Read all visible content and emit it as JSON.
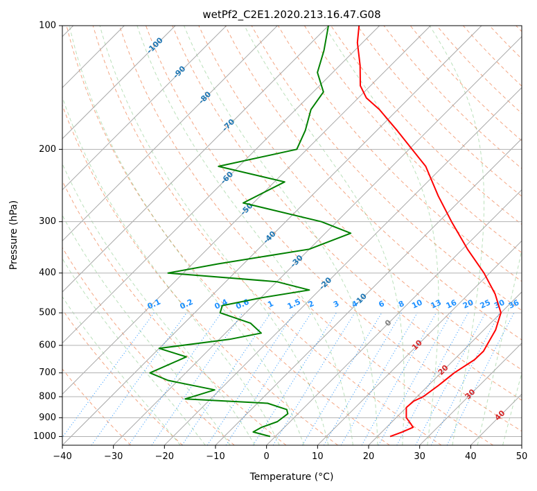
{
  "chart_data": {
    "type": "line",
    "title": "wetPf2_C2E1.2020.213.16.47.G08",
    "xlabel": "Temperature (°C)",
    "ylabel": "Pressure (hPa)",
    "xlim": [
      -40,
      50
    ],
    "ylim": [
      1050,
      100
    ],
    "y_scale": "log",
    "grid": true,
    "x_ticks": [
      -40,
      -30,
      -20,
      -10,
      0,
      10,
      20,
      30,
      40,
      50
    ],
    "y_ticks": [
      100,
      200,
      300,
      400,
      500,
      600,
      700,
      800,
      900,
      1000
    ],
    "skew_description": "skewed isotherms (Skew-T log-P diagram)",
    "series": [
      {
        "color": "#ff0000",
        "points": [
          {
            "p": 1000,
            "t": 22.5
          },
          {
            "p": 975,
            "t": 24.0
          },
          {
            "p": 950,
            "t": 25.2
          },
          {
            "p": 930,
            "t": 24.0
          },
          {
            "p": 900,
            "t": 22.0
          },
          {
            "p": 850,
            "t": 20.0
          },
          {
            "p": 820,
            "t": 20.2
          },
          {
            "p": 800,
            "t": 21.2
          },
          {
            "p": 750,
            "t": 22.0
          },
          {
            "p": 700,
            "t": 22.6
          },
          {
            "p": 650,
            "t": 24.0
          },
          {
            "p": 620,
            "t": 24.1
          },
          {
            "p": 600,
            "t": 23.6
          },
          {
            "p": 550,
            "t": 22.3
          },
          {
            "p": 500,
            "t": 20.0
          },
          {
            "p": 450,
            "t": 15.2
          },
          {
            "p": 400,
            "t": 8.9
          },
          {
            "p": 350,
            "t": 1.0
          },
          {
            "p": 300,
            "t": -7.5
          },
          {
            "p": 260,
            "t": -15.1
          },
          {
            "p": 220,
            "t": -23.4
          },
          {
            "p": 200,
            "t": -29.4
          },
          {
            "p": 180,
            "t": -36.0
          },
          {
            "p": 160,
            "t": -43.6
          },
          {
            "p": 150,
            "t": -48.4
          },
          {
            "p": 140,
            "t": -52.0
          },
          {
            "p": 125,
            "t": -56.0
          },
          {
            "p": 110,
            "t": -61.0
          },
          {
            "p": 100,
            "t": -64.0
          }
        ]
      },
      {
        "color": "#008000",
        "points": [
          {
            "p": 1000,
            "t": -1.0
          },
          {
            "p": 975,
            "t": -5.2
          },
          {
            "p": 950,
            "t": -4.5
          },
          {
            "p": 920,
            "t": -2.5
          },
          {
            "p": 880,
            "t": -2.0
          },
          {
            "p": 860,
            "t": -3.0
          },
          {
            "p": 830,
            "t": -8.0
          },
          {
            "p": 810,
            "t": -25.0
          },
          {
            "p": 790,
            "t": -23.0
          },
          {
            "p": 770,
            "t": -21.0
          },
          {
            "p": 730,
            "t": -32.0
          },
          {
            "p": 700,
            "t": -37.0
          },
          {
            "p": 640,
            "t": -33.0
          },
          {
            "p": 610,
            "t": -40.0
          },
          {
            "p": 580,
            "t": -28.0
          },
          {
            "p": 560,
            "t": -23.0
          },
          {
            "p": 530,
            "t": -27.0
          },
          {
            "p": 500,
            "t": -35.0
          },
          {
            "p": 480,
            "t": -36.0
          },
          {
            "p": 460,
            "t": -30.0
          },
          {
            "p": 440,
            "t": -22.0
          },
          {
            "p": 420,
            "t": -30.0
          },
          {
            "p": 400,
            "t": -53.0
          },
          {
            "p": 380,
            "t": -45.0
          },
          {
            "p": 350,
            "t": -30.0
          },
          {
            "p": 320,
            "t": -25.0
          },
          {
            "p": 300,
            "t": -33.0
          },
          {
            "p": 270,
            "t": -52.0
          },
          {
            "p": 240,
            "t": -48.0
          },
          {
            "p": 220,
            "t": -64.0
          },
          {
            "p": 200,
            "t": -52.0
          },
          {
            "p": 180,
            "t": -54.0
          },
          {
            "p": 160,
            "t": -57.0
          },
          {
            "p": 145,
            "t": -58.0
          },
          {
            "p": 130,
            "t": -63.0
          },
          {
            "p": 115,
            "t": -66.0
          },
          {
            "p": 100,
            "t": -70.0
          }
        ]
      }
    ],
    "isotherm_labels": {
      "values": [
        -100,
        -90,
        -80,
        -70,
        -60,
        -50,
        -40,
        -30,
        -20,
        -10,
        0,
        10,
        20,
        30,
        40
      ],
      "text": [
        "-100",
        "-90",
        "-80",
        "-70",
        "-60",
        "-50",
        "-40",
        "-30",
        "-20",
        "-10",
        "0",
        "10",
        "20",
        "30",
        "40"
      ],
      "colors": {
        "cold": "#1f77b4",
        "zero": "#808080",
        "warm": "#d62728"
      }
    },
    "mixing_ratio_labels": {
      "values": [
        0.1,
        0.2,
        0.4,
        0.6,
        1,
        1.5,
        2,
        3,
        4,
        6,
        8,
        10,
        13,
        16,
        20,
        25,
        30,
        36
      ],
      "text": [
        "0.1",
        "0.2",
        "0.4",
        "0.6",
        "1",
        "1.5",
        "2",
        "3",
        "4",
        "6",
        "8",
        "10",
        "13",
        "16",
        "20",
        "25",
        "30",
        "36"
      ],
      "color": "#1e90ff"
    }
  }
}
